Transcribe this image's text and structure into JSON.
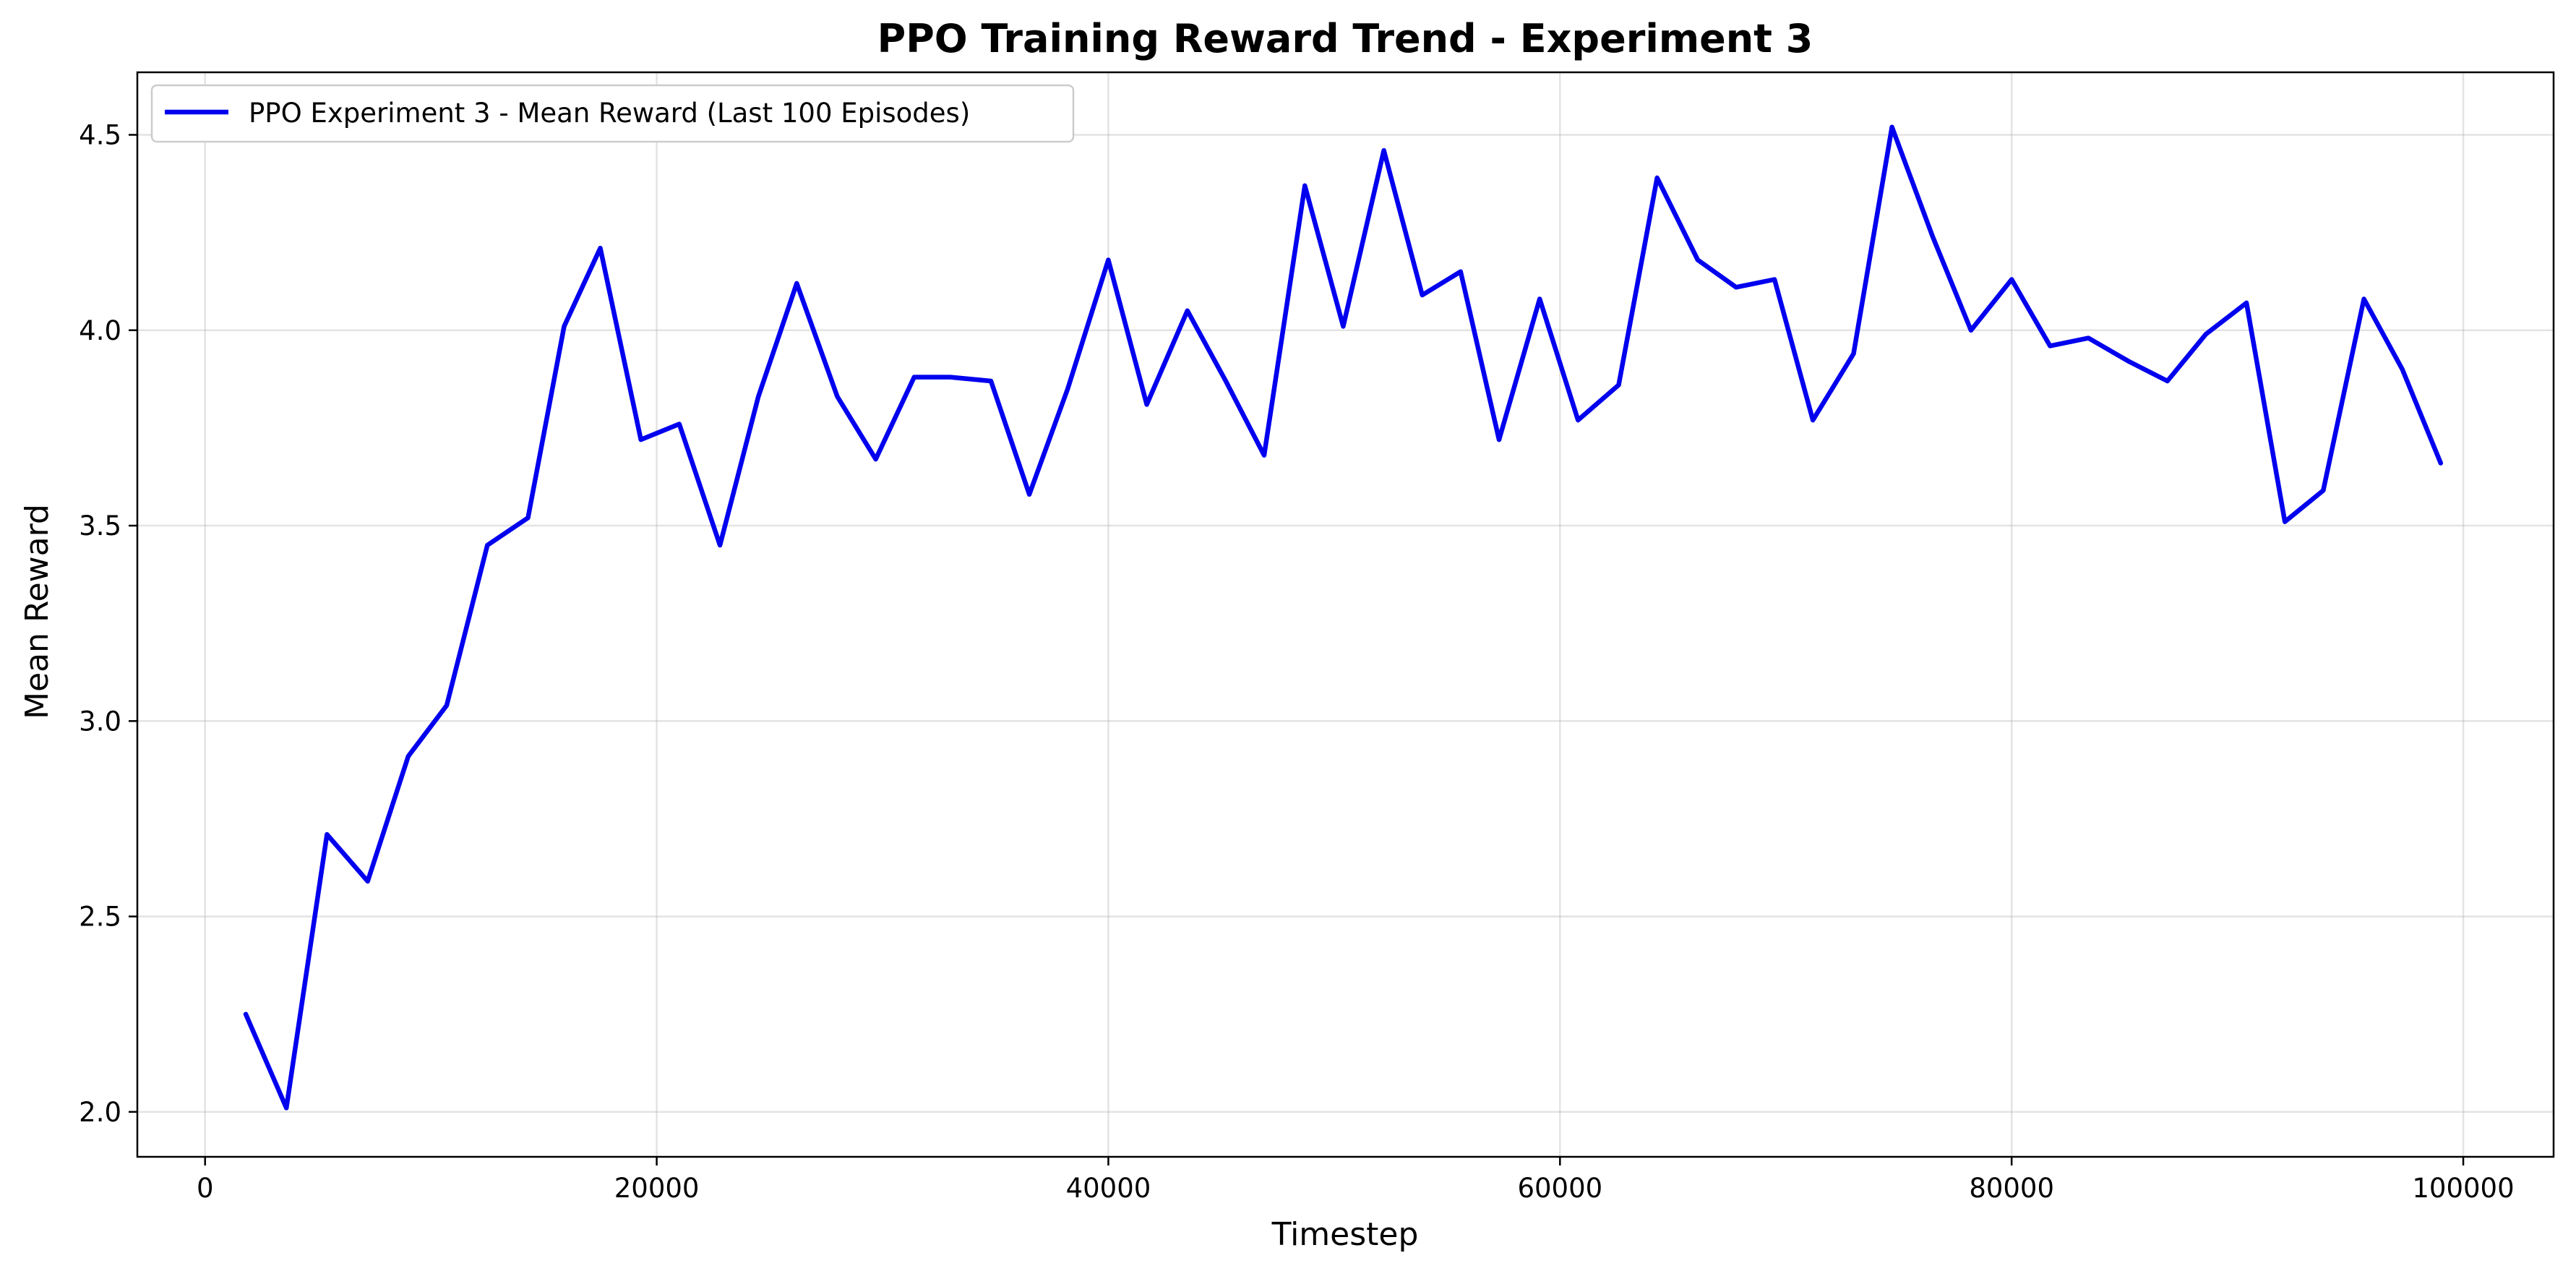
{
  "chart_data": {
    "type": "line",
    "title": "PPO Training Reward Trend - Experiment 3",
    "xlabel": "Timestep",
    "ylabel": "Mean Reward",
    "xlim": [
      -3000,
      104000
    ],
    "ylim": [
      1.885,
      4.66
    ],
    "x_ticks": [
      0,
      20000,
      40000,
      60000,
      80000,
      100000
    ],
    "y_ticks": [
      2.0,
      2.5,
      3.0,
      3.5,
      4.0,
      4.5
    ],
    "x_tick_labels": [
      "0",
      "20000",
      "40000",
      "60000",
      "80000",
      "100000"
    ],
    "y_tick_labels": [
      "2.0",
      "2.5",
      "3.0",
      "3.5",
      "4.0",
      "4.5"
    ],
    "grid": true,
    "legend_position": "top-left",
    "series": [
      {
        "name": "PPO Experiment 3 - Mean Reward (Last 100 Episodes)",
        "color": "#0000ee",
        "x": [
          1800,
          3600,
          5400,
          7200,
          9000,
          10700,
          12500,
          14300,
          15900,
          17500,
          19300,
          21000,
          22800,
          24500,
          26200,
          28000,
          29700,
          31400,
          33000,
          34800,
          36500,
          38200,
          40000,
          41700,
          43500,
          45200,
          46900,
          48700,
          50400,
          52200,
          53900,
          55600,
          57300,
          59100,
          60800,
          62600,
          64300,
          66100,
          67800,
          69500,
          71200,
          73000,
          74700,
          76500,
          78200,
          80000,
          81700,
          83400,
          85200,
          86900,
          88600,
          90400,
          92100,
          93800,
          95600,
          97300,
          99000
        ],
        "values": [
          2.25,
          2.01,
          2.71,
          2.59,
          2.91,
          3.04,
          3.45,
          3.52,
          4.01,
          4.21,
          3.72,
          3.76,
          3.45,
          3.83,
          4.12,
          3.83,
          3.67,
          3.88,
          3.88,
          3.87,
          3.58,
          3.85,
          4.18,
          3.81,
          4.05,
          3.87,
          3.68,
          4.37,
          4.01,
          4.46,
          4.09,
          4.15,
          3.72,
          4.08,
          3.77,
          3.86,
          4.39,
          4.18,
          4.11,
          4.13,
          3.77,
          3.94,
          4.52,
          4.24,
          4.0,
          4.13,
          3.96,
          3.98,
          3.92,
          3.87,
          3.99,
          4.07,
          3.51,
          3.59,
          4.08,
          3.9,
          3.66
        ]
      }
    ]
  }
}
